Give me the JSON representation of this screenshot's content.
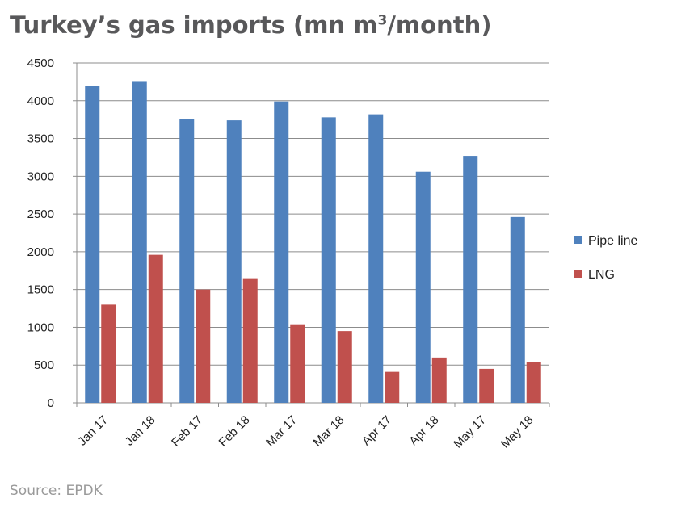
{
  "title": {
    "main": "Turkey’s gas imports (mn m",
    "sup": "3",
    "tail": "/month)"
  },
  "source": "Source: EPDK",
  "chart_data": {
    "type": "bar",
    "title": "Turkey’s gas imports (mn m3/month)",
    "categories": [
      "Jan 17",
      "Jan 18",
      "Feb 17",
      "Feb 18",
      "Mar 17",
      "Mar 18",
      "Apr 17",
      "Apr 18",
      "May 17",
      "May 18"
    ],
    "series": [
      {
        "name": "Pipe line",
        "color": "#4f81bd",
        "values": [
          4200,
          4260,
          3760,
          3740,
          3990,
          3780,
          3820,
          3060,
          3270,
          2460
        ]
      },
      {
        "name": "LNG",
        "color": "#c0504d",
        "values": [
          1300,
          1960,
          1500,
          1650,
          1040,
          950,
          410,
          600,
          450,
          540
        ]
      }
    ],
    "yticks": [
      "0",
      "500",
      "1000",
      "1500",
      "2000",
      "2500",
      "3000",
      "3500",
      "4000",
      "4500"
    ],
    "ylim": [
      0,
      4500
    ],
    "grid": true,
    "legend": "right"
  }
}
